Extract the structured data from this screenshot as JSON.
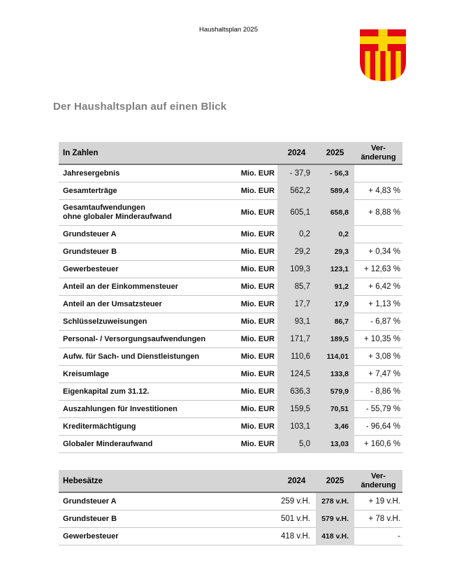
{
  "page": {
    "top_label": "Haushaltsplan 2025",
    "title": "Der Haushaltsplan auf einen Blick"
  },
  "colors": {
    "table_header_fill": "#d5d5d5",
    "year_column_fill": "#d9d9d9",
    "header_rule": "#787878",
    "row_rule": "#c6c6c6",
    "title_gray": "#7f7f7f",
    "text_black": "#111111",
    "crest_red": "#e30613",
    "crest_yellow": "#ffd503"
  },
  "tables": [
    {
      "name": "In Zahlen",
      "headers": {
        "label": "In Zahlen",
        "y2024": "2024",
        "y2025": "2025",
        "change_l1": "Ver-",
        "change_l2": "änderung"
      },
      "rows": [
        {
          "label": "Jahresergebnis",
          "unit": "Mio. EUR",
          "v2024": "- 37,9",
          "v2025": "- 56,3",
          "change": ""
        },
        {
          "label": "Gesamterträge",
          "unit": "Mio. EUR",
          "v2024": "562,2",
          "v2025": "589,4",
          "change": "+ 4,83 %"
        },
        {
          "label": "Gesamtaufwendungen",
          "label2": "ohne globaler Minderaufwand",
          "unit": "Mio. EUR",
          "v2024": "605,1",
          "v2025": "658,8",
          "change": "+ 8,88 %"
        },
        {
          "label": "Grundsteuer A",
          "unit": "Mio. EUR",
          "v2024": "0,2",
          "v2025": "0,2",
          "change": ""
        },
        {
          "label": "Grundsteuer B",
          "unit": "Mio. EUR",
          "v2024": "29,2",
          "v2025": "29,3",
          "change": "+ 0,34 %"
        },
        {
          "label": "Gewerbesteuer",
          "unit": "Mio. EUR",
          "v2024": "109,3",
          "v2025": "123,1",
          "change": "+ 12,63 %"
        },
        {
          "label": "Anteil an der Einkommensteuer",
          "unit": "Mio. EUR",
          "v2024": "85,7",
          "v2025": "91,2",
          "change": "+ 6,42 %"
        },
        {
          "label": "Anteil an der Umsatzsteuer",
          "unit": "Mio. EUR",
          "v2024": "17,7",
          "v2025": "17,9",
          "change": "+ 1,13 %"
        },
        {
          "label": "Schlüsselzuweisungen",
          "unit": "Mio. EUR",
          "v2024": "93,1",
          "v2025": "86,7",
          "change": "- 6,87 %"
        },
        {
          "label": "Personal- / Versorgungsaufwendungen",
          "unit": "Mio. EUR",
          "v2024": "171,7",
          "v2025": "189,5",
          "change": "+ 10,35 %"
        },
        {
          "label": "Aufw. für Sach- und Dienstleistungen",
          "unit": "Mio. EUR",
          "v2024": "110,6",
          "v2025": "114,01",
          "change": "+ 3,08 %"
        },
        {
          "label": "Kreisumlage",
          "unit": "Mio. EUR",
          "v2024": "124,5",
          "v2025": "133,8",
          "change": "+ 7,47 %"
        },
        {
          "label": "Eigenkapital zum 31.12.",
          "unit": "Mio. EUR",
          "v2024": "636,3",
          "v2025": "579,9",
          "change": "- 8,86 %"
        },
        {
          "label": "Auszahlungen für Investitionen",
          "unit": "Mio. EUR",
          "v2024": "159,5",
          "v2025": "70,51",
          "change": "- 55,79 %"
        },
        {
          "label": "Kreditermächtigung",
          "unit": "Mio. EUR",
          "v2024": "103,1",
          "v2025": "3,46",
          "change": "- 96,64 %"
        },
        {
          "label": "Globaler Minderaufwand",
          "unit": "Mio. EUR",
          "v2024": "5,0",
          "v2025": "13,03",
          "change": "+ 160,6 %"
        }
      ]
    },
    {
      "name": "Hebesätze",
      "headers": {
        "label": "Hebesätze",
        "y2024": "2024",
        "y2025": "2025",
        "change_l1": "Ver-",
        "change_l2": "änderung"
      },
      "rows": [
        {
          "label": "Grundsteuer A",
          "v2024": "259 v.H.",
          "v2025": "278 v.H.",
          "change": "+ 19 v.H."
        },
        {
          "label": "Grundsteuer B",
          "v2024": "501 v.H.",
          "v2025": "579 v.H.",
          "change": "+ 78 v.H."
        },
        {
          "label": "Gewerbesteuer",
          "v2024": "418 v.H.",
          "v2025": "418 v.H.",
          "change": "-"
        }
      ]
    }
  ]
}
